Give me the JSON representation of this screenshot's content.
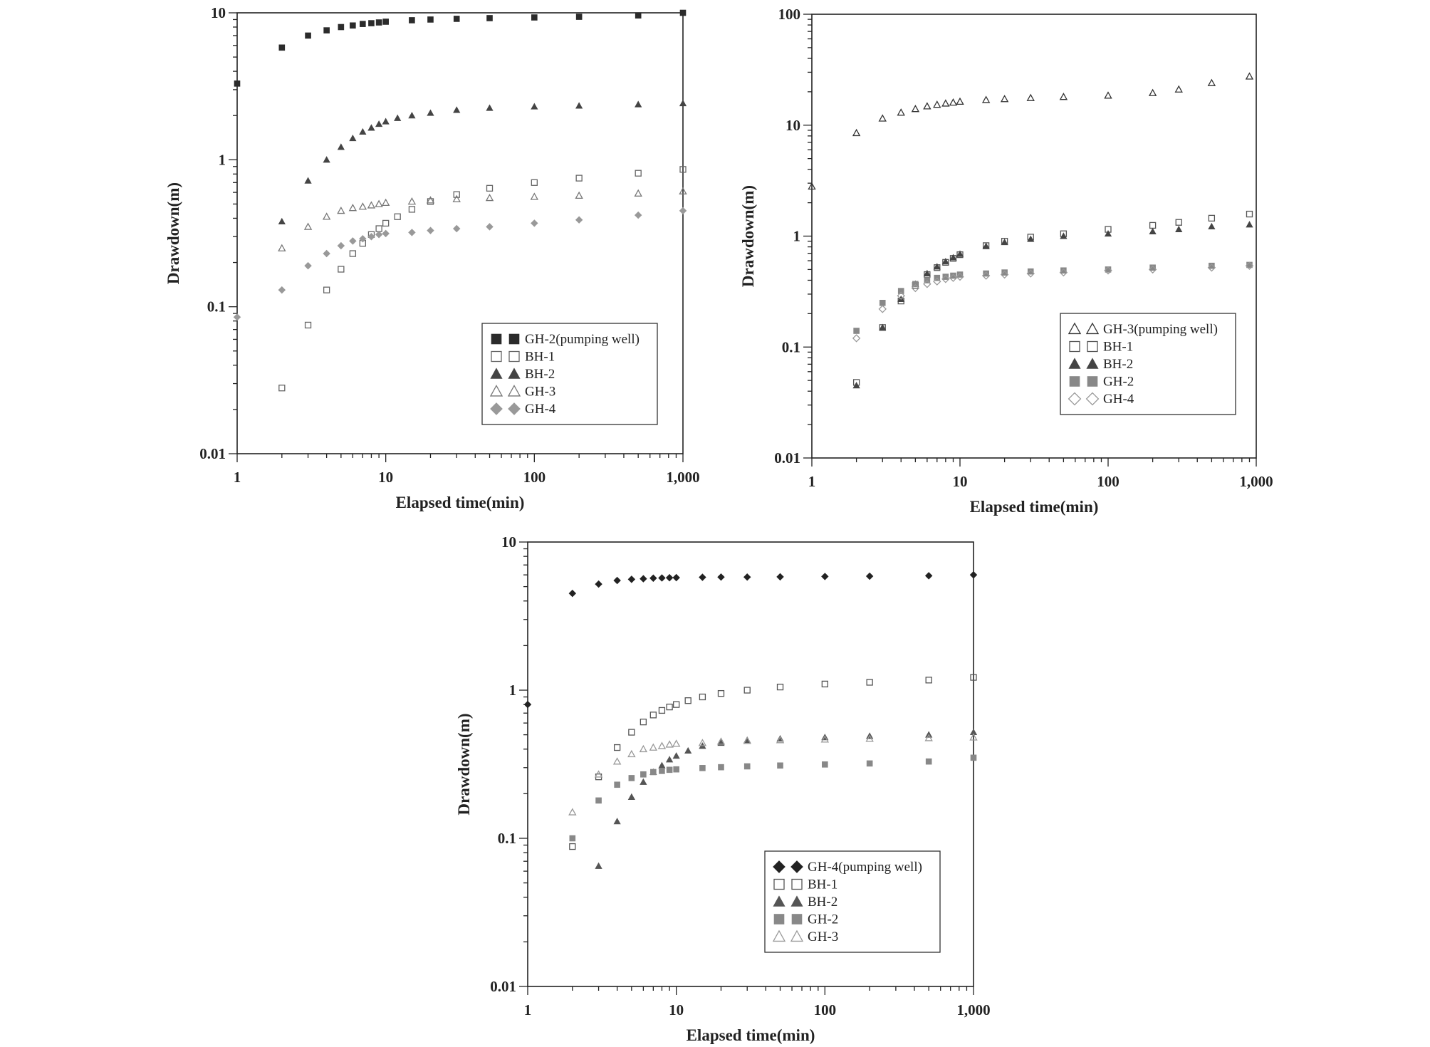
{
  "chart_data": [
    {
      "type": "scatter",
      "scale": "log-log",
      "xlabel": "Elapsed time(min)",
      "ylabel": "Drawdown(m)",
      "xlim": [
        1,
        1000
      ],
      "ylim": [
        0.01,
        10
      ],
      "xticks": [
        "1",
        "10",
        "100",
        "1,000"
      ],
      "yticks": [
        "0.01",
        "0.1",
        "1",
        "10"
      ],
      "series": [
        {
          "name": "GH-2(pumping well)",
          "marker": "square-filled",
          "color": "#2b2b2b",
          "x": [
            1,
            2,
            3,
            4,
            5,
            6,
            7,
            8,
            9,
            10,
            15,
            20,
            30,
            50,
            100,
            200,
            500,
            1000
          ],
          "y": [
            3.3,
            5.8,
            7.0,
            7.6,
            8.0,
            8.2,
            8.4,
            8.5,
            8.6,
            8.7,
            8.9,
            9.0,
            9.1,
            9.2,
            9.3,
            9.4,
            9.6,
            10.0
          ]
        },
        {
          "name": "BH-1",
          "marker": "square-open",
          "color": "#666666",
          "x": [
            2,
            3,
            4,
            5,
            6,
            7,
            8,
            9,
            10,
            12,
            15,
            20,
            30,
            50,
            100,
            200,
            500,
            1000
          ],
          "y": [
            0.028,
            0.075,
            0.13,
            0.18,
            0.23,
            0.27,
            0.31,
            0.34,
            0.37,
            0.41,
            0.46,
            0.52,
            0.58,
            0.64,
            0.7,
            0.75,
            0.81,
            0.86
          ]
        },
        {
          "name": "BH-2",
          "marker": "triangle-filled",
          "color": "#444444",
          "x": [
            2,
            3,
            4,
            5,
            6,
            7,
            8,
            9,
            10,
            12,
            15,
            20,
            30,
            50,
            100,
            200,
            500,
            1000
          ],
          "y": [
            0.38,
            0.72,
            1.0,
            1.22,
            1.4,
            1.55,
            1.65,
            1.75,
            1.82,
            1.92,
            2.0,
            2.08,
            2.18,
            2.25,
            2.3,
            2.33,
            2.38,
            2.42
          ]
        },
        {
          "name": "GH-3",
          "marker": "triangle-open",
          "color": "#777777",
          "x": [
            2,
            3,
            4,
            5,
            6,
            7,
            8,
            9,
            10,
            15,
            20,
            30,
            50,
            100,
            200,
            500,
            1000
          ],
          "y": [
            0.25,
            0.35,
            0.41,
            0.45,
            0.47,
            0.48,
            0.49,
            0.5,
            0.51,
            0.52,
            0.53,
            0.54,
            0.55,
            0.56,
            0.57,
            0.59,
            0.61
          ]
        },
        {
          "name": "GH-4",
          "marker": "diamond-filled",
          "color": "#999999",
          "x": [
            1,
            2,
            3,
            4,
            5,
            6,
            7,
            8,
            9,
            10,
            15,
            20,
            30,
            50,
            100,
            200,
            500,
            1000
          ],
          "y": [
            0.085,
            0.13,
            0.19,
            0.23,
            0.26,
            0.28,
            0.29,
            0.3,
            0.31,
            0.315,
            0.32,
            0.33,
            0.34,
            0.35,
            0.37,
            0.39,
            0.42,
            0.45
          ]
        }
      ]
    },
    {
      "type": "scatter",
      "scale": "log-log",
      "xlabel": "Elapsed time(min)",
      "ylabel": "Drawdown(m)",
      "xlim": [
        1,
        1000
      ],
      "ylim": [
        0.01,
        100
      ],
      "xticks": [
        "1",
        "10",
        "100",
        "1,000"
      ],
      "yticks": [
        "0.01",
        "0.1",
        "1",
        "10",
        "100"
      ],
      "series": [
        {
          "name": "GH-3(pumping well)",
          "marker": "triangle-open",
          "color": "#333333",
          "x": [
            1,
            2,
            3,
            4,
            5,
            6,
            7,
            8,
            9,
            10,
            15,
            20,
            30,
            50,
            100,
            200,
            300,
            500,
            900
          ],
          "y": [
            2.8,
            8.5,
            11.5,
            13.0,
            14.0,
            14.8,
            15.3,
            15.7,
            16.0,
            16.3,
            16.9,
            17.2,
            17.6,
            18.0,
            18.5,
            19.5,
            21.0,
            24.0,
            27.5
          ]
        },
        {
          "name": "BH-1",
          "marker": "square-open",
          "color": "#555555",
          "x": [
            2,
            3,
            4,
            5,
            6,
            7,
            8,
            9,
            10,
            15,
            20,
            30,
            50,
            100,
            200,
            300,
            500,
            900
          ],
          "y": [
            0.048,
            0.15,
            0.26,
            0.36,
            0.45,
            0.52,
            0.58,
            0.63,
            0.68,
            0.82,
            0.9,
            0.98,
            1.05,
            1.15,
            1.25,
            1.33,
            1.45,
            1.58
          ]
        },
        {
          "name": "BH-2",
          "marker": "triangle-filled",
          "color": "#444444",
          "x": [
            2,
            3,
            4,
            5,
            6,
            7,
            8,
            9,
            10,
            15,
            20,
            30,
            50,
            100,
            200,
            300,
            500,
            900
          ],
          "y": [
            0.045,
            0.15,
            0.27,
            0.37,
            0.46,
            0.53,
            0.59,
            0.64,
            0.69,
            0.81,
            0.88,
            0.94,
            1.0,
            1.05,
            1.1,
            1.15,
            1.22,
            1.27
          ]
        },
        {
          "name": "GH-2",
          "marker": "square-filled",
          "color": "#888888",
          "x": [
            2,
            3,
            4,
            5,
            6,
            7,
            8,
            9,
            10,
            15,
            20,
            30,
            50,
            100,
            200,
            500,
            900
          ],
          "y": [
            0.14,
            0.25,
            0.32,
            0.37,
            0.4,
            0.42,
            0.43,
            0.44,
            0.45,
            0.46,
            0.47,
            0.48,
            0.49,
            0.5,
            0.52,
            0.54,
            0.55
          ]
        },
        {
          "name": "GH-4",
          "marker": "diamond-open",
          "color": "#999999",
          "x": [
            2,
            3,
            4,
            5,
            6,
            7,
            8,
            9,
            10,
            15,
            20,
            30,
            50,
            100,
            200,
            500,
            900
          ],
          "y": [
            0.12,
            0.22,
            0.29,
            0.34,
            0.37,
            0.39,
            0.41,
            0.42,
            0.43,
            0.44,
            0.45,
            0.46,
            0.47,
            0.49,
            0.5,
            0.52,
            0.54
          ]
        }
      ]
    },
    {
      "type": "scatter",
      "scale": "log-log",
      "xlabel": "Elapsed time(min)",
      "ylabel": "Drawdown(m)",
      "xlim": [
        1,
        1000
      ],
      "ylim": [
        0.01,
        10
      ],
      "xticks": [
        "1",
        "10",
        "100",
        "1,000"
      ],
      "yticks": [
        "0.01",
        "0.1",
        "1",
        "10"
      ],
      "series": [
        {
          "name": "GH-4(pumping well)",
          "marker": "diamond-filled",
          "color": "#222222",
          "x": [
            1,
            2,
            3,
            4,
            5,
            6,
            7,
            8,
            9,
            10,
            15,
            20,
            30,
            50,
            100,
            200,
            500,
            1000
          ],
          "y": [
            0.8,
            4.5,
            5.2,
            5.5,
            5.6,
            5.65,
            5.7,
            5.72,
            5.74,
            5.75,
            5.78,
            5.8,
            5.8,
            5.82,
            5.85,
            5.88,
            5.92,
            6.0
          ]
        },
        {
          "name": "BH-1",
          "marker": "square-open",
          "color": "#555555",
          "x": [
            2,
            3,
            4,
            5,
            6,
            7,
            8,
            9,
            10,
            12,
            15,
            20,
            30,
            50,
            100,
            200,
            500,
            1000
          ],
          "y": [
            0.088,
            0.26,
            0.41,
            0.52,
            0.61,
            0.68,
            0.73,
            0.77,
            0.8,
            0.85,
            0.9,
            0.95,
            1.0,
            1.05,
            1.1,
            1.13,
            1.17,
            1.22
          ]
        },
        {
          "name": "BH-2",
          "marker": "triangle-filled",
          "color": "#555555",
          "x": [
            3,
            4,
            5,
            6,
            7,
            8,
            9,
            10,
            12,
            15,
            20,
            30,
            50,
            100,
            200,
            500,
            1000
          ],
          "y": [
            0.065,
            0.13,
            0.19,
            0.24,
            0.28,
            0.31,
            0.34,
            0.36,
            0.39,
            0.42,
            0.44,
            0.46,
            0.47,
            0.48,
            0.49,
            0.5,
            0.52
          ]
        },
        {
          "name": "GH-2",
          "marker": "square-filled",
          "color": "#888888",
          "x": [
            2,
            3,
            4,
            5,
            6,
            7,
            8,
            9,
            10,
            15,
            20,
            30,
            50,
            100,
            200,
            500,
            1000
          ],
          "y": [
            0.1,
            0.18,
            0.23,
            0.255,
            0.27,
            0.28,
            0.285,
            0.29,
            0.292,
            0.298,
            0.302,
            0.306,
            0.31,
            0.315,
            0.32,
            0.33,
            0.35
          ]
        },
        {
          "name": "GH-3",
          "marker": "triangle-open",
          "color": "#999999",
          "x": [
            2,
            3,
            4,
            5,
            6,
            7,
            8,
            9,
            10,
            15,
            20,
            30,
            50,
            100,
            200,
            500,
            1000
          ],
          "y": [
            0.15,
            0.27,
            0.33,
            0.37,
            0.4,
            0.41,
            0.42,
            0.43,
            0.435,
            0.44,
            0.45,
            0.455,
            0.46,
            0.465,
            0.47,
            0.475,
            0.48
          ]
        }
      ]
    }
  ]
}
